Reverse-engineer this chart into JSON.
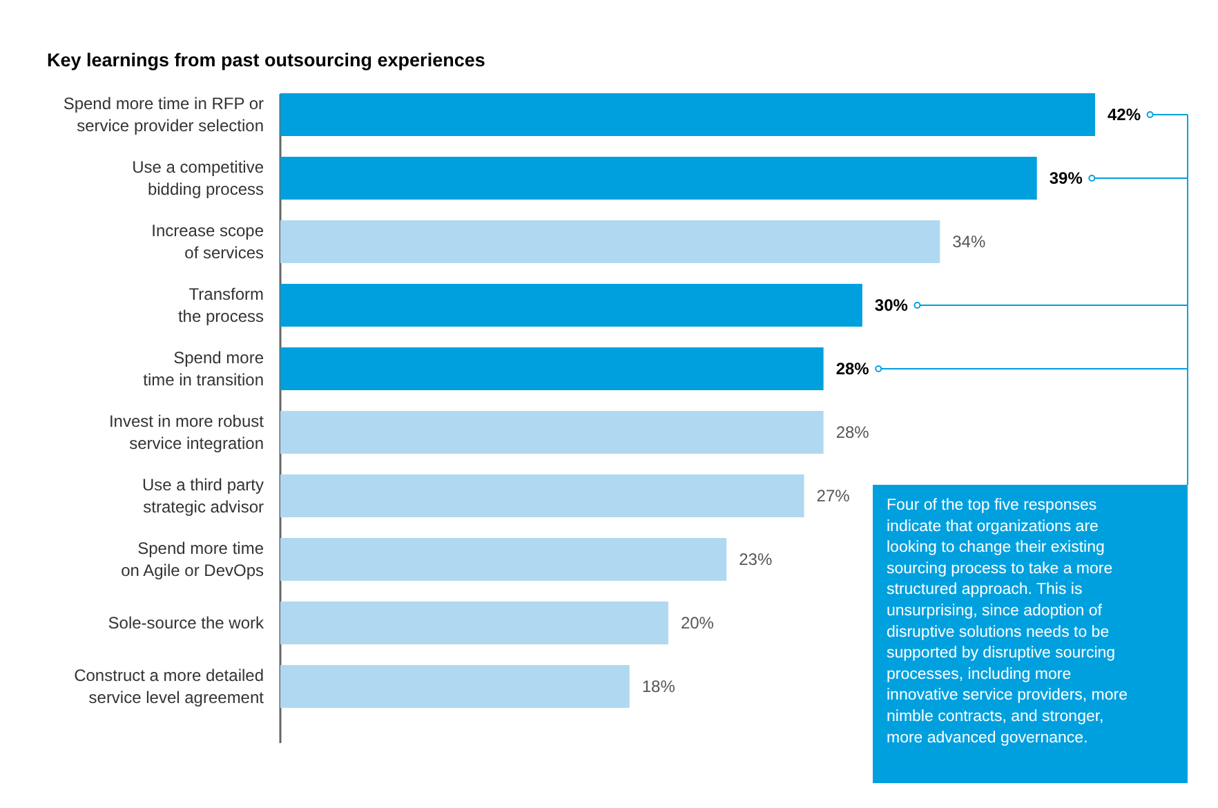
{
  "chart_data": {
    "type": "bar",
    "orientation": "horizontal",
    "title": "Key learnings from past outsourcing experiences",
    "categories": [
      "Spend more time in RFP or\nservice provider selection",
      "Use a competitive\nbidding process",
      "Increase scope\nof services",
      "Transform\nthe process",
      "Spend more\ntime in transition",
      "Invest in more robust\nservice integration",
      "Use a third party\nstrategic advisor",
      "Spend more time\non Agile or DevOps",
      "Sole-source the work",
      "Construct a more detailed\nservice level agreement"
    ],
    "values": [
      42,
      39,
      34,
      30,
      28,
      28,
      27,
      23,
      20,
      18
    ],
    "value_labels": [
      "42%",
      "39%",
      "34%",
      "30%",
      "28%",
      "28%",
      "27%",
      "23%",
      "20%",
      "18%"
    ],
    "colors": [
      "#00a0df",
      "#00a0df",
      "#b0d8f1",
      "#00a0df",
      "#00a0df",
      "#b0d8f1",
      "#b0d8f1",
      "#b0d8f1",
      "#b0d8f1",
      "#b0d8f1"
    ],
    "annotations": [
      "Four of the top five responses indicate that organizations are looking to change their existing sourcing process to take a more structured approach. This is unsurprising, since adoption of disruptive solutions needs to be supported by disruptive sourcing processes, including more innovative service providers, more nimble contracts, and stronger, more advanced governance."
    ]
  }
}
